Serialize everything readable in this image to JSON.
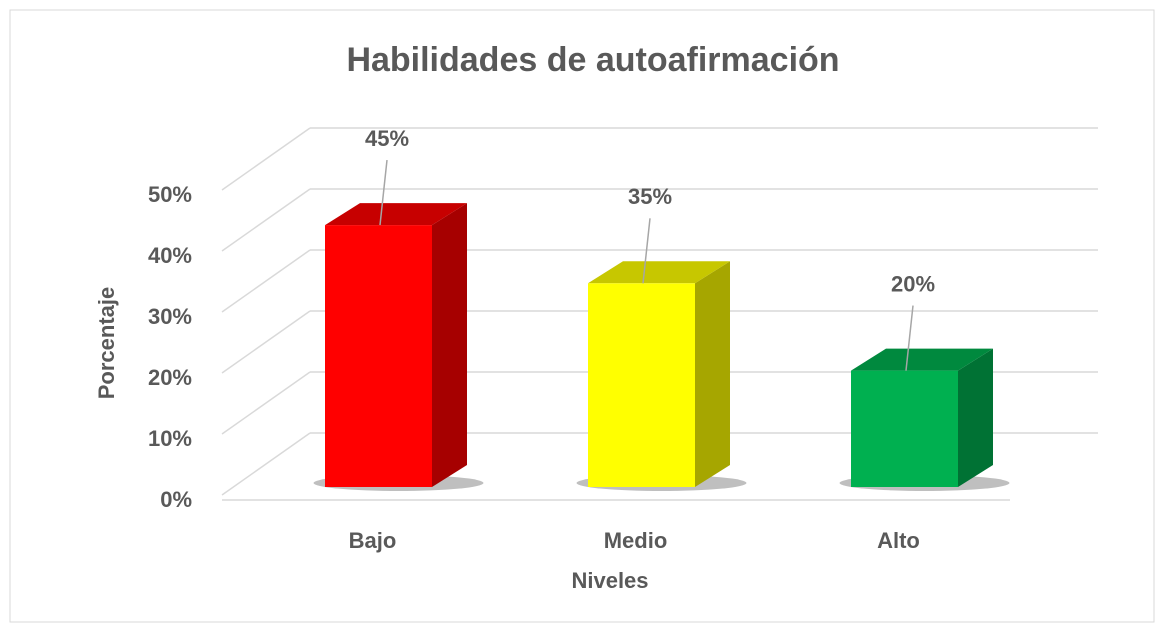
{
  "chart_data": {
    "type": "bar3d",
    "title": "Habilidades de autoafirmación",
    "categories": [
      "Bajo",
      "Medio",
      "Alto"
    ],
    "values": [
      45,
      35,
      20
    ],
    "value_labels": [
      "45%",
      "35%",
      "20%"
    ],
    "colors": [
      "#ff0000",
      "#ffff00",
      "#00b050"
    ],
    "x_label": "Niveles",
    "y_label": "Porcentaje",
    "ylim": [
      0,
      50
    ],
    "yticks": [
      {
        "value": 0,
        "label": "0%"
      },
      {
        "value": 10,
        "label": "10%"
      },
      {
        "value": 20,
        "label": "20%"
      },
      {
        "value": 30,
        "label": "30%"
      },
      {
        "value": 40,
        "label": "40%"
      },
      {
        "value": 50,
        "label": "50%"
      }
    ],
    "grid": true
  }
}
